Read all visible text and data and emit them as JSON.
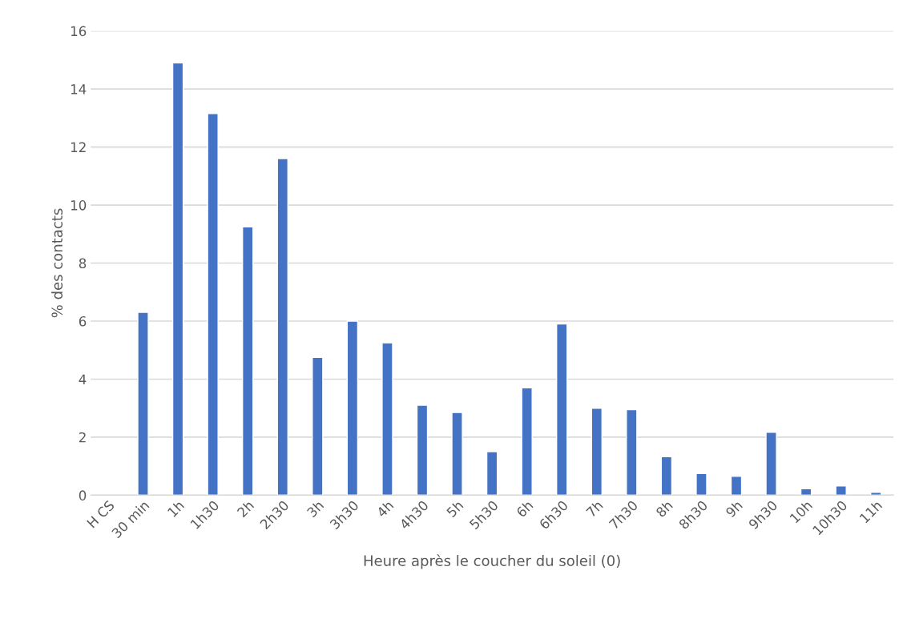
{
  "chart_data": {
    "type": "bar",
    "xlabel": "Heure après le coucher du soleil (0)",
    "ylabel": "% des contacts",
    "categories": [
      "H CS",
      "30 min",
      "1h",
      "1h30",
      "2h",
      "2h30",
      "3h",
      "3h30",
      "4h",
      "4h30",
      "5h",
      "5h30",
      "6h",
      "6h30",
      "7h",
      "7h30",
      "8h",
      "8h30",
      "9h",
      "9h30",
      "10h",
      "10h30",
      "11h"
    ],
    "values": [
      null,
      6.3,
      14.9,
      13.15,
      9.25,
      11.6,
      4.75,
      6.0,
      5.25,
      3.1,
      2.85,
      1.5,
      3.7,
      5.9,
      3.0,
      2.95,
      1.33,
      0.75,
      0.65,
      2.17,
      0.22,
      0.32,
      0.1
    ],
    "color": "#4472c4",
    "ylim": [
      0,
      16
    ],
    "yticks": [
      0,
      2,
      4,
      6,
      8,
      10,
      12,
      14,
      16
    ],
    "grid": "y"
  }
}
